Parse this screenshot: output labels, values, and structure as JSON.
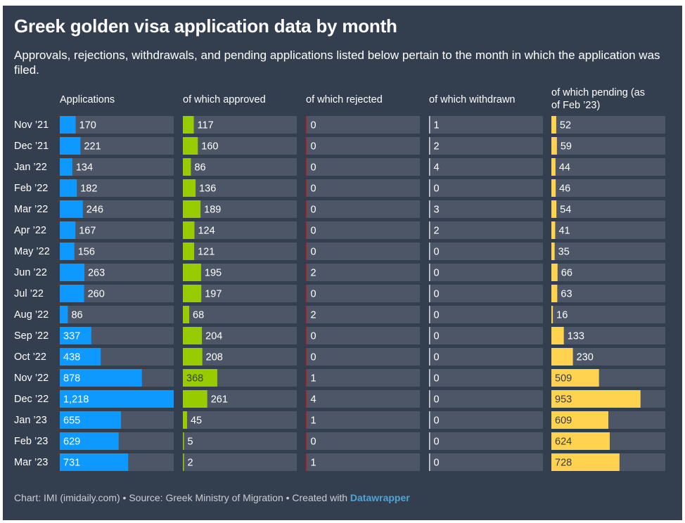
{
  "header": {
    "title": "Greek golden visa application data by month",
    "subtitle": "Approvals, rejections, withdrawals, and pending applications listed below pertain to the month in which the application was filed."
  },
  "footer": {
    "credit": "Chart: IMI (imidaily.com) • Source: Greek Ministry of Migration • Created with",
    "tool": "Datawrapper"
  },
  "chart_data": {
    "type": "bar",
    "title": "Greek golden visa application data by month",
    "categories": [
      "Nov ’21",
      "Dec ’21",
      "Jan ’22",
      "Feb ’22",
      "Mar ’22",
      "Apr ’22",
      "May ’22",
      "Jun ’22",
      "Jul ’22",
      "Aug ’22",
      "Sep ’22",
      "Oct ’22",
      "Nov ’22",
      "Dec ’22",
      "Jan ’23",
      "Feb ’23",
      "Mar ’23"
    ],
    "xlim": [
      0,
      1218
    ],
    "series": [
      {
        "name": "Applications",
        "color": "#0d99ff",
        "values": [
          170,
          221,
          134,
          182,
          246,
          167,
          156,
          263,
          260,
          86,
          337,
          438,
          878,
          1218,
          655,
          629,
          731
        ]
      },
      {
        "name": "of which approved",
        "color": "#99cc00",
        "values": [
          117,
          160,
          86,
          136,
          189,
          124,
          121,
          195,
          197,
          68,
          204,
          208,
          368,
          261,
          45,
          5,
          2
        ]
      },
      {
        "name": "of which rejected",
        "color": "#c71e1d",
        "values": [
          0,
          0,
          0,
          0,
          0,
          0,
          0,
          2,
          0,
          2,
          0,
          0,
          1,
          4,
          1,
          0,
          1
        ]
      },
      {
        "name": "of which withdrawn",
        "color": "#d4d7dc",
        "values": [
          1,
          2,
          4,
          0,
          3,
          2,
          0,
          0,
          0,
          0,
          0,
          0,
          0,
          0,
          0,
          0,
          0
        ]
      },
      {
        "name": "of which pending (as of Feb ’23)",
        "color": "#ffd24f",
        "values": [
          52,
          59,
          44,
          46,
          54,
          41,
          35,
          66,
          63,
          16,
          133,
          230,
          509,
          953,
          609,
          624,
          728
        ]
      }
    ]
  }
}
